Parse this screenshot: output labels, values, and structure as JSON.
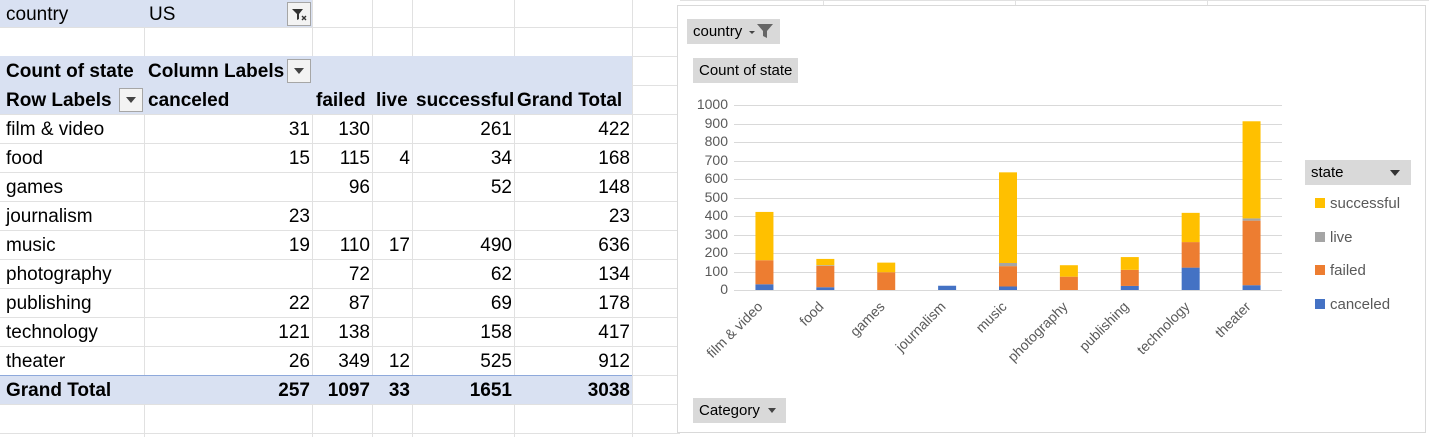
{
  "filter": {
    "field": "country",
    "value": "US"
  },
  "pivot": {
    "value_field": "Count of state",
    "column_labels": "Column Labels",
    "row_labels": "Row Labels",
    "columns": [
      "canceled",
      "failed",
      "live",
      "successful",
      "Grand Total"
    ],
    "rows": [
      {
        "label": "film & video",
        "canceled": "31",
        "failed": "130",
        "live": "",
        "successful": "261",
        "total": "422"
      },
      {
        "label": "food",
        "canceled": "15",
        "failed": "115",
        "live": "4",
        "successful": "34",
        "total": "168"
      },
      {
        "label": "games",
        "canceled": "",
        "failed": "96",
        "live": "",
        "successful": "52",
        "total": "148"
      },
      {
        "label": "journalism",
        "canceled": "23",
        "failed": "",
        "live": "",
        "successful": "",
        "total": "23"
      },
      {
        "label": "music",
        "canceled": "19",
        "failed": "110",
        "live": "17",
        "successful": "490",
        "total": "636"
      },
      {
        "label": "photography",
        "canceled": "",
        "failed": "72",
        "live": "",
        "successful": "62",
        "total": "134"
      },
      {
        "label": "publishing",
        "canceled": "22",
        "failed": "87",
        "live": "",
        "successful": "69",
        "total": "178"
      },
      {
        "label": "technology",
        "canceled": "121",
        "failed": "138",
        "live": "",
        "successful": "158",
        "total": "417"
      },
      {
        "label": "theater",
        "canceled": "26",
        "failed": "349",
        "live": "12",
        "successful": "525",
        "total": "912"
      }
    ],
    "grand_total": {
      "label": "Grand Total",
      "canceled": "257",
      "failed": "1097",
      "live": "33",
      "successful": "1651",
      "total": "3038"
    }
  },
  "chart_buttons": {
    "country": "country",
    "value": "Count of state",
    "category": "Category",
    "legend_title": "state"
  },
  "chart_data": {
    "type": "bar",
    "stacked": true,
    "categories": [
      "film & video",
      "food",
      "games",
      "journalism",
      "music",
      "photography",
      "publishing",
      "technology",
      "theater"
    ],
    "series": [
      {
        "name": "canceled",
        "color": "#4472c4",
        "values": [
          31,
          15,
          0,
          23,
          19,
          0,
          22,
          121,
          26
        ]
      },
      {
        "name": "failed",
        "color": "#ed7d31",
        "values": [
          130,
          115,
          96,
          0,
          110,
          72,
          87,
          138,
          349
        ]
      },
      {
        "name": "live",
        "color": "#a5a5a5",
        "values": [
          0,
          4,
          0,
          0,
          17,
          0,
          0,
          0,
          12
        ]
      },
      {
        "name": "successful",
        "color": "#ffc000",
        "values": [
          261,
          34,
          52,
          0,
          490,
          62,
          69,
          158,
          525
        ]
      }
    ],
    "yticks": [
      "0",
      "100",
      "200",
      "300",
      "400",
      "500",
      "600",
      "700",
      "800",
      "900",
      "1000"
    ],
    "ylim": [
      0,
      1000
    ],
    "legend_order": [
      "successful",
      "live",
      "failed",
      "canceled"
    ],
    "legend_position": "right",
    "grid": true
  }
}
